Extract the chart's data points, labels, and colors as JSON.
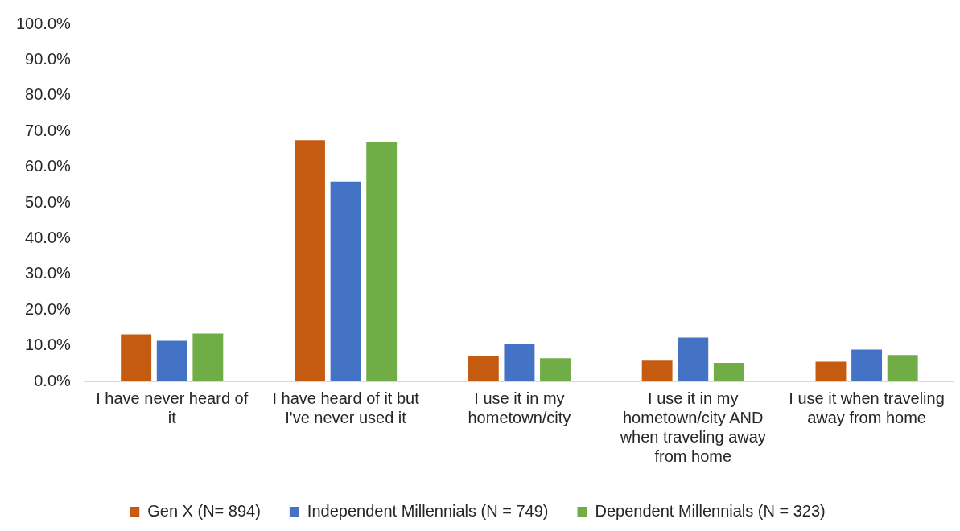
{
  "chart_data": {
    "type": "bar",
    "categories": [
      "I have never heard of it",
      "I have heard of it but I've never used it",
      "I use it in my hometown/city",
      "I use it in my hometown/city AND when traveling away from home",
      "I use it when traveling away from home"
    ],
    "series": [
      {
        "name": "Gen X (N= 894)",
        "color": "#c55a11",
        "values": [
          13.2,
          67.5,
          7.1,
          5.8,
          5.5
        ]
      },
      {
        "name": "Independent Millennials (N = 749)",
        "color": "#4472c4",
        "values": [
          11.4,
          55.9,
          10.4,
          12.3,
          8.9
        ]
      },
      {
        "name": "Dependent Millennials (N = 323)",
        "color": "#70ad47",
        "values": [
          13.4,
          66.9,
          6.5,
          5.2,
          7.4
        ]
      }
    ],
    "ylim": [
      0,
      100
    ],
    "yticks": [
      {
        "value": 0,
        "label": "0.0%"
      },
      {
        "value": 10,
        "label": "10.0%"
      },
      {
        "value": 20,
        "label": "20.0%"
      },
      {
        "value": 30,
        "label": "30.0%"
      },
      {
        "value": 40,
        "label": "40.0%"
      },
      {
        "value": 50,
        "label": "50.0%"
      },
      {
        "value": 60,
        "label": "60.0%"
      },
      {
        "value": 70,
        "label": "70.0%"
      },
      {
        "value": 80,
        "label": "80.0%"
      },
      {
        "value": 90,
        "label": "90.0%"
      },
      {
        "value": 100,
        "label": "100.0%"
      }
    ],
    "grid": false,
    "legend": "bottom"
  }
}
